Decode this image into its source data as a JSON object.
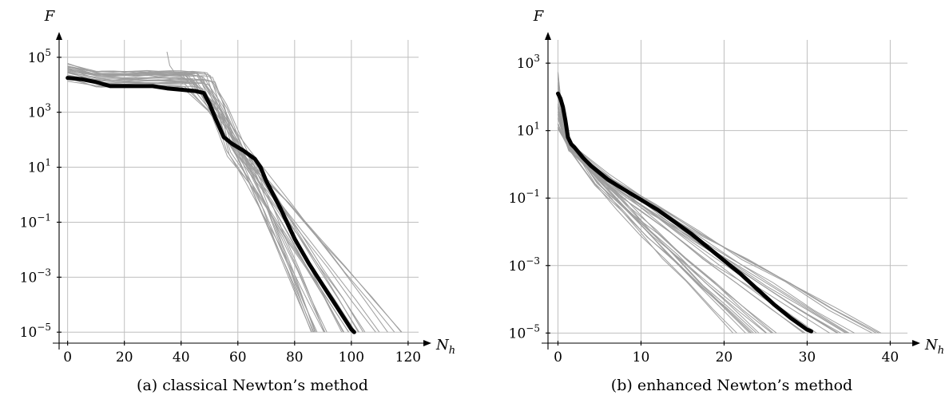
{
  "chart_data": [
    {
      "type": "line",
      "caption": "(a) classical Newton’s method",
      "xlabel": "N",
      "xlabel_sub": "h",
      "ylabel": "F",
      "xlim": [
        -3,
        122
      ],
      "ylim": [
        -5.4,
        5.4
      ],
      "yscale": "log",
      "xticks": [
        0,
        20,
        40,
        60,
        80,
        100,
        120
      ],
      "yticks": [
        {
          "base": "10",
          "exp": "5",
          "value": 5
        },
        {
          "base": "10",
          "exp": "3",
          "value": 3
        },
        {
          "base": "10",
          "exp": "1",
          "value": 1
        },
        {
          "base": "10",
          "exp": "−1",
          "value": -1
        },
        {
          "base": "10",
          "exp": "−3",
          "value": -3
        },
        {
          "base": "10",
          "exp": "−5",
          "value": -5
        }
      ],
      "grid": true,
      "runs": {
        "count": 28,
        "plateau_log10": [
          3.9,
          4.5
        ],
        "plateau_end": [
          40,
          52
        ],
        "knee_log10": [
          1.3,
          2.0
        ],
        "knee_start": [
          56,
          64
        ],
        "end_x": [
          85,
          118
        ],
        "end_log10": -5.0,
        "spike": {
          "x": [
            35,
            36,
            38
          ],
          "log10": [
            5.2,
            4.7,
            4.4
          ]
        }
      },
      "mean_curve": {
        "x": [
          0,
          5,
          10,
          15,
          20,
          25,
          30,
          35,
          40,
          45,
          48,
          50,
          52,
          55,
          58,
          62,
          66,
          68,
          70,
          75,
          80,
          85,
          90,
          95,
          100,
          101
        ],
        "log10": [
          4.25,
          4.2,
          4.1,
          3.95,
          3.95,
          3.95,
          3.95,
          3.87,
          3.82,
          3.77,
          3.7,
          3.3,
          2.8,
          2.1,
          1.85,
          1.6,
          1.3,
          1.0,
          0.5,
          -0.5,
          -1.6,
          -2.5,
          -3.3,
          -4.1,
          -4.9,
          -5.0
        ]
      }
    },
    {
      "type": "line",
      "caption": "(b) enhanced Newton’s method",
      "xlabel": "N",
      "xlabel_sub": "h",
      "ylabel": "F",
      "xlim": [
        -1.2,
        41.5
      ],
      "ylim": [
        -5.3,
        3.5
      ],
      "yscale": "log",
      "xticks": [
        0,
        10,
        20,
        30,
        40
      ],
      "yticks": [
        {
          "base": "10",
          "exp": "3",
          "value": 3
        },
        {
          "base": "10",
          "exp": "1",
          "value": 1
        },
        {
          "base": "10",
          "exp": "−1",
          "value": -1
        },
        {
          "base": "10",
          "exp": "−3",
          "value": -3
        },
        {
          "base": "10",
          "exp": "−5",
          "value": -5
        }
      ],
      "grid": true,
      "runs": {
        "count": 30,
        "start_log10": [
          1.0,
          2.8
        ],
        "end_x": [
          21,
          40
        ],
        "end_log10": -5.0
      },
      "mean_curve": {
        "x": [
          0,
          0.3,
          0.6,
          0.9,
          1.2,
          1.6,
          2,
          3,
          4,
          5,
          6,
          8,
          10,
          12,
          14,
          16,
          18,
          20,
          22,
          24,
          26,
          28,
          30,
          30.5
        ],
        "log10": [
          2.1,
          1.95,
          1.7,
          1.3,
          0.8,
          0.6,
          0.5,
          0.2,
          -0.05,
          -0.25,
          -0.45,
          -0.75,
          -1.05,
          -1.35,
          -1.7,
          -2.05,
          -2.45,
          -2.85,
          -3.25,
          -3.7,
          -4.15,
          -4.55,
          -4.9,
          -4.95
        ]
      }
    }
  ]
}
